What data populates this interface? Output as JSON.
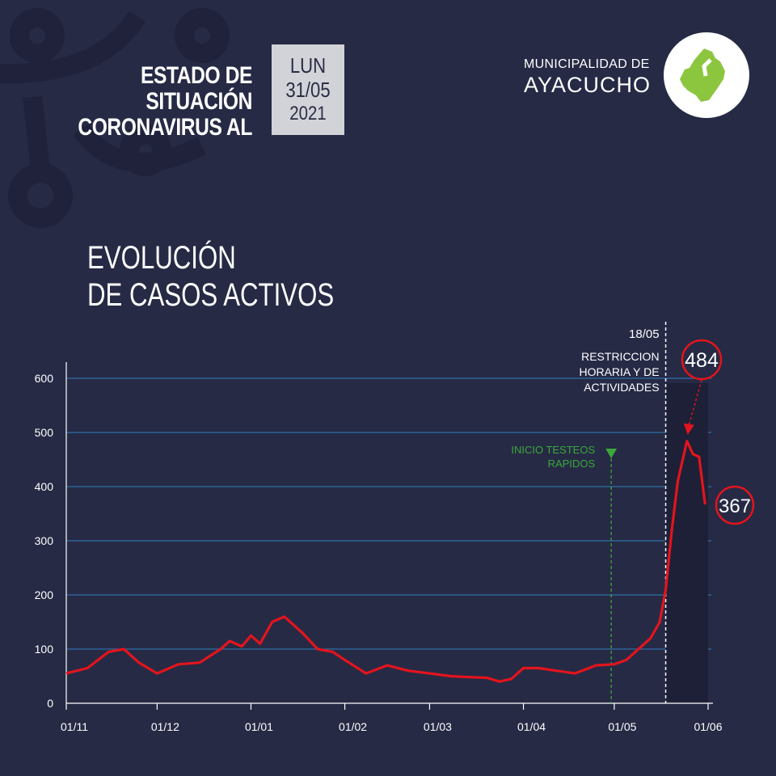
{
  "header": {
    "title_line1": "ESTADO DE SITUACIÓN",
    "title_line2": "CORONAVIRUS AL",
    "date_day": "LUN",
    "date_dm": "31/05",
    "date_year": "2021",
    "org_line1": "MUNICIPALIDAD DE",
    "org_line2": "AYACUCHO"
  },
  "section": {
    "title_line1": "EVOLUCIÓN",
    "title_line2": "DE CASOS ACTIVOS"
  },
  "colors": {
    "background": "#262a45",
    "line": "#e3141d",
    "grid": "#2f6fa6",
    "annotation_green": "#3aa83a",
    "logo_green": "#8cc63f"
  },
  "chart_data": {
    "type": "line",
    "title": "EVOLUCIÓN DE CASOS ACTIVOS",
    "xlabel": "",
    "ylabel": "",
    "x_ticks": [
      "01/11",
      "01/12",
      "01/01",
      "01/02",
      "01/03",
      "01/04",
      "01/05",
      "01/06"
    ],
    "y_ticks": [
      "0",
      "100",
      "200",
      "300",
      "400",
      "500",
      "600"
    ],
    "ylim": [
      0,
      650
    ],
    "grid": true,
    "series": [
      {
        "name": "",
        "x": [
          "2020-11-01",
          "2020-11-08",
          "2020-11-15",
          "2020-11-20",
          "2020-11-25",
          "2020-12-01",
          "2020-12-08",
          "2020-12-15",
          "2020-12-22",
          "2020-12-25",
          "2020-12-29",
          "2021-01-01",
          "2021-01-04",
          "2021-01-08",
          "2021-01-12",
          "2021-01-18",
          "2021-01-23",
          "2021-01-28",
          "2021-02-01",
          "2021-02-08",
          "2021-02-15",
          "2021-02-22",
          "2021-03-01",
          "2021-03-08",
          "2021-03-15",
          "2021-03-20",
          "2021-03-24",
          "2021-03-28",
          "2021-04-01",
          "2021-04-06",
          "2021-04-12",
          "2021-04-18",
          "2021-04-25",
          "2021-05-01",
          "2021-05-05",
          "2021-05-09",
          "2021-05-13",
          "2021-05-16",
          "2021-05-18",
          "2021-05-20",
          "2021-05-22",
          "2021-05-25",
          "2021-05-27",
          "2021-05-29",
          "2021-05-31"
        ],
        "y": [
          55,
          65,
          95,
          100,
          75,
          55,
          72,
          75,
          100,
          115,
          105,
          125,
          110,
          150,
          160,
          130,
          100,
          95,
          80,
          55,
          70,
          60,
          55,
          50,
          48,
          47,
          40,
          45,
          65,
          65,
          60,
          55,
          70,
          72,
          80,
          100,
          120,
          150,
          210,
          320,
          410,
          484,
          460,
          455,
          367
        ]
      }
    ],
    "annotations": [
      {
        "x": "2021-04-30",
        "text_line1": "INICIO TESTEOS",
        "text_line2": "RAPIDOS"
      },
      {
        "x": "2021-05-18",
        "text_line1": "18/05",
        "text_line2": "RESTRICCION",
        "text_line3": "HORARIA Y DE",
        "text_line4": "ACTIVIDADES"
      }
    ],
    "callouts": [
      {
        "label": "484",
        "value": 484
      },
      {
        "label": "367",
        "value": 367
      }
    ]
  }
}
